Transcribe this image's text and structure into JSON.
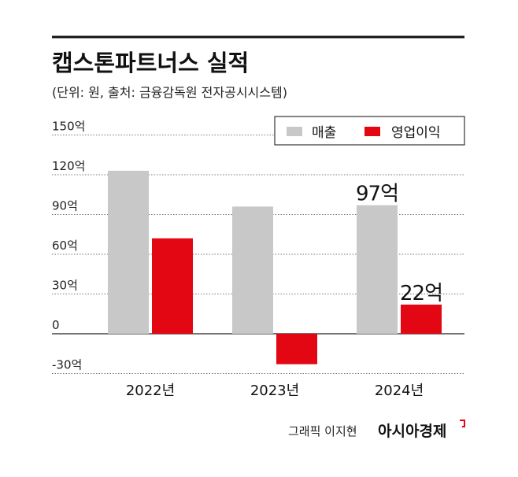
{
  "chart_data": {
    "type": "bar",
    "title": "캡스톤파트너스 실적",
    "subtitle": "(단위: 원, 출처: 금융감독원 전자공시시스템)",
    "categories": [
      "2022년",
      "2023년",
      "2024년"
    ],
    "series": [
      {
        "name": "매출",
        "color": "#c8c8c8",
        "values": [
          123,
          96,
          97
        ]
      },
      {
        "name": "영업이익",
        "color": "#e30613",
        "values": [
          72,
          -23,
          22
        ]
      }
    ],
    "yticks": [
      150,
      120,
      90,
      60,
      30,
      0,
      -30
    ],
    "ytick_labels": [
      "150억",
      "120억",
      "90억",
      "60억",
      "30억",
      "0",
      "-30억"
    ],
    "ylim": [
      -30,
      150
    ],
    "annotations": [
      {
        "series": 0,
        "index": 2,
        "text": "97억"
      },
      {
        "series": 1,
        "index": 2,
        "text": "22억"
      }
    ],
    "legend": "top-right",
    "grid": true
  },
  "credit": {
    "designer": "그래픽 이지현",
    "brand": "아시아경제"
  }
}
